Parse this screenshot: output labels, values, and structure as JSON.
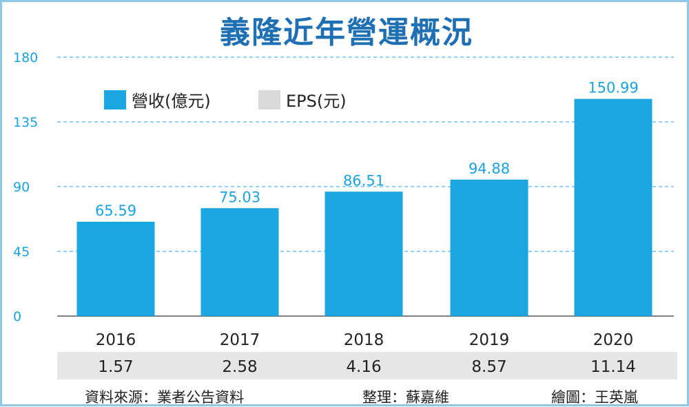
{
  "title": "義隆近年營運概況",
  "chart_data": {
    "type": "bar",
    "title": "義隆近年營運概況",
    "categories": [
      "2016",
      "2017",
      "2018",
      "2019",
      "2020"
    ],
    "series": [
      {
        "name": "營收(億元)",
        "values": [
          65.59,
          75.03,
          86.51,
          94.88,
          150.99
        ]
      },
      {
        "name": "EPS(元)",
        "values": [
          1.57,
          2.58,
          4.16,
          8.57,
          11.14
        ]
      }
    ],
    "value_labels": [
      "65.59",
      "75.03",
      "86.51",
      "94.88",
      "150.99"
    ],
    "eps_labels": [
      "1.57",
      "2.58",
      "4.16",
      "8.57",
      "11.14"
    ],
    "yticks": [
      "0",
      "45",
      "90",
      "135",
      "180"
    ],
    "ylim": [
      0,
      180
    ],
    "grid": "dashed horizontal",
    "legend_position": "top-left",
    "xlabel": "",
    "ylabel": ""
  },
  "legend": [
    {
      "label": "營收(億元)",
      "color": "#1aa7e1"
    },
    {
      "label": "EPS(元)",
      "color": "#d9d9d9"
    }
  ],
  "colors": {
    "bar": "#1aa7e1",
    "title": "#1e6fb3",
    "axis_text": "#1aa3e0",
    "grid": "#4bb3e3",
    "eps_band": "#e6e6e6",
    "frame": "#8fc8e6"
  },
  "footer": {
    "source": "資料來源：業者公告資料",
    "organized": "整理：蘇嘉維",
    "drawn": "繪圖：王英嵐"
  }
}
